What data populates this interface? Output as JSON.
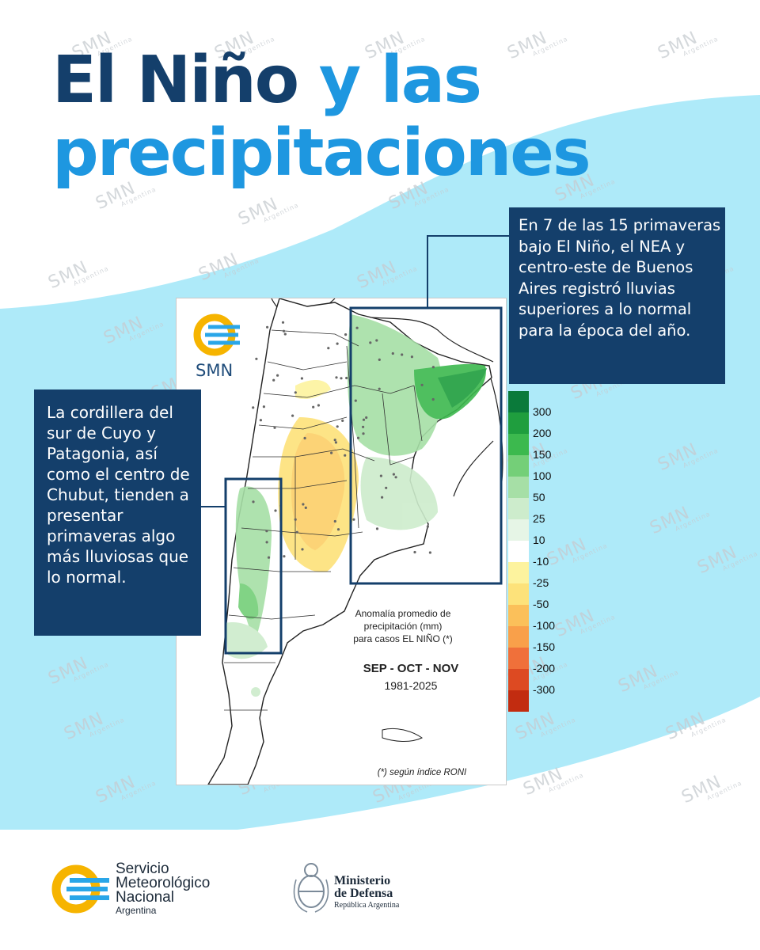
{
  "title": {
    "line1_dark": "El Niño",
    "line1_light": "y las",
    "line2": "precipitaciones"
  },
  "colors": {
    "navy": "#143f6b",
    "blue": "#1e97e0",
    "wave": "#aeeaf9",
    "smn_yellow": "#f6b400"
  },
  "callouts": {
    "right": "En 7 de las 15 primaveras bajo El Niño, el NEA y centro-este de Buenos Aires registró lluvias superiores a lo normal para la época del año.",
    "left": "La cordillera del sur de Cuyo y Patagonia, así como el centro de Chubut, tienden a presentar primaveras algo más lluviosas que lo normal."
  },
  "map": {
    "logo_text": "SMN",
    "caption": {
      "line1": "Anomalía promedio de",
      "line2": "precipitación (mm)",
      "line3": "para casos EL NIÑO (*)",
      "period": "SEP - OCT - NOV",
      "years": "1981-2025",
      "note": "(*) según índice RONI"
    },
    "legend": [
      {
        "label": "300",
        "color": "#0a7a3a"
      },
      {
        "label": "200",
        "color": "#1f9e3e"
      },
      {
        "label": "150",
        "color": "#3cb94e"
      },
      {
        "label": "100",
        "color": "#74cf78"
      },
      {
        "label": "50",
        "color": "#a6dfa6"
      },
      {
        "label": "25",
        "color": "#cdeccc"
      },
      {
        "label": "10",
        "color": "#e6f5e6"
      },
      {
        "label": "-10",
        "color": "#ffffff"
      },
      {
        "label": "-25",
        "color": "#fdf39e"
      },
      {
        "label": "-50",
        "color": "#fde27a"
      },
      {
        "label": "-100",
        "color": "#fbc05a"
      },
      {
        "label": "-150",
        "color": "#f9a04a"
      },
      {
        "label": "-200",
        "color": "#f0703a"
      },
      {
        "label": "-300",
        "color": "#dd4a22"
      },
      {
        "label": "",
        "color": "#c22c10"
      }
    ]
  },
  "watermark": {
    "text": "SMN",
    "sub": "Argentina"
  },
  "footer": {
    "smn": {
      "line1": "Servicio",
      "line2": "Meteorológico",
      "line3": "Nacional",
      "line4": "Argentina"
    },
    "ministry": {
      "line1": "Ministerio",
      "line2": "de Defensa",
      "line3": "República Argentina"
    }
  }
}
